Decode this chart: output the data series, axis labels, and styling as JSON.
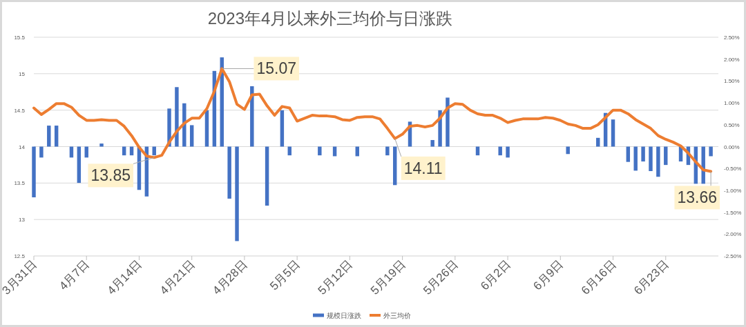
{
  "chart_data": {
    "type": "bar",
    "title": "2023年4月以来外三均价与日涨跌",
    "x": [
      "2023-03-31",
      "2023-04-01",
      "2023-04-02",
      "2023-04-03",
      "2023-04-04",
      "2023-04-05",
      "2023-04-06",
      "2023-04-07",
      "2023-04-08",
      "2023-04-09",
      "2023-04-10",
      "2023-04-11",
      "2023-04-12",
      "2023-04-13",
      "2023-04-14",
      "2023-04-15",
      "2023-04-16",
      "2023-04-17",
      "2023-04-18",
      "2023-04-19",
      "2023-04-20",
      "2023-04-21",
      "2023-04-22",
      "2023-04-23",
      "2023-04-24",
      "2023-04-25",
      "2023-04-26",
      "2023-04-27",
      "2023-04-28",
      "2023-04-29",
      "2023-04-30",
      "2023-05-01",
      "2023-05-02",
      "2023-05-03",
      "2023-05-04",
      "2023-05-05",
      "2023-05-06",
      "2023-05-07",
      "2023-05-08",
      "2023-05-09",
      "2023-05-10",
      "2023-05-11",
      "2023-05-12",
      "2023-05-13",
      "2023-05-14",
      "2023-05-15",
      "2023-05-16",
      "2023-05-17",
      "2023-05-18",
      "2023-05-19",
      "2023-05-20",
      "2023-05-21",
      "2023-05-22",
      "2023-05-23",
      "2023-05-24",
      "2023-05-25",
      "2023-05-26",
      "2023-05-27",
      "2023-05-28",
      "2023-05-29",
      "2023-05-30",
      "2023-05-31",
      "2023-06-01",
      "2023-06-02",
      "2023-06-03",
      "2023-06-04",
      "2023-06-05",
      "2023-06-06",
      "2023-06-07",
      "2023-06-08",
      "2023-06-09",
      "2023-06-10",
      "2023-06-11",
      "2023-06-12",
      "2023-06-13",
      "2023-06-14",
      "2023-06-15",
      "2023-06-16",
      "2023-06-17",
      "2023-06-18",
      "2023-06-19",
      "2023-06-20",
      "2023-06-21",
      "2023-06-22",
      "2023-06-23",
      "2023-06-24",
      "2023-06-25",
      "2023-06-26",
      "2023-06-27",
      "2023-06-28",
      "2023-06-29"
    ],
    "xlim": [
      "2023-03-31",
      "2023-06-30"
    ],
    "xticks": [
      {
        "value": "2023-03-31",
        "label": "3月31日"
      },
      {
        "value": "2023-04-07",
        "label": "4月7日"
      },
      {
        "value": "2023-04-14",
        "label": "4月14日"
      },
      {
        "value": "2023-04-21",
        "label": "4月21日"
      },
      {
        "value": "2023-04-28",
        "label": "4月28日"
      },
      {
        "value": "2023-05-05",
        "label": "5月5日"
      },
      {
        "value": "2023-05-12",
        "label": "5月12日"
      },
      {
        "value": "2023-05-19",
        "label": "5月19日"
      },
      {
        "value": "2023-05-26",
        "label": "5月26日"
      },
      {
        "value": "2023-06-02",
        "label": "6月2日"
      },
      {
        "value": "2023-06-09",
        "label": "6月9日"
      },
      {
        "value": "2023-06-16",
        "label": "6月16日"
      },
      {
        "value": "2023-06-23",
        "label": "6月23日"
      }
    ],
    "ylim": [
      12.5,
      15.5
    ],
    "yticks": [
      12.5,
      13,
      13.5,
      14,
      14.5,
      15,
      15.5
    ],
    "y2lim": [
      -2.5,
      2.5
    ],
    "y2ticks": [
      {
        "value": -2.5,
        "label": "-2.50%"
      },
      {
        "value": -2,
        "label": "-2.00%"
      },
      {
        "value": -1.5,
        "label": "-1.50%"
      },
      {
        "value": -1,
        "label": "-1.00%"
      },
      {
        "value": -0.5,
        "label": "-0.50%"
      },
      {
        "value": 0,
        "label": "0.00%"
      },
      {
        "value": 0.5,
        "label": "0.50%"
      },
      {
        "value": 1,
        "label": "1.00%"
      },
      {
        "value": 1.5,
        "label": "1.50%"
      },
      {
        "value": 2,
        "label": "2.00%"
      },
      {
        "value": 2.5,
        "label": "2.50%"
      }
    ],
    "series": [
      {
        "name": "规模日涨跌",
        "axis": "y2",
        "color": "#4472c4",
        "values": [
          -1.16,
          -0.25,
          0.48,
          0.48,
          null,
          -0.25,
          -0.83,
          -0.25,
          null,
          0.07,
          null,
          null,
          -0.2,
          -0.2,
          -0.99,
          -1.14,
          -0.2,
          null,
          0.87,
          1.36,
          0.99,
          0.49,
          null,
          0.83,
          1.73,
          2.04,
          -1.19,
          -2.16,
          null,
          1.38,
          null,
          -1.35,
          null,
          0.83,
          -0.2,
          null,
          null,
          null,
          -0.2,
          null,
          -0.22,
          null,
          null,
          -0.22,
          null,
          null,
          null,
          -0.2,
          -0.88,
          null,
          0.57,
          null,
          null,
          0.15,
          0.83,
          1.12,
          null,
          null,
          null,
          -0.2,
          null,
          null,
          -0.2,
          -0.25,
          null,
          null,
          null,
          null,
          null,
          null,
          null,
          -0.17,
          null,
          null,
          null,
          0.2,
          0.77,
          0.62,
          null,
          -0.35,
          -0.55,
          -0.34,
          -0.56,
          -0.69,
          -0.42,
          null,
          -0.34,
          -0.42,
          -0.85,
          -0.85,
          -0.22
        ]
      },
      {
        "name": "外三均价",
        "type": "line",
        "color": "#ed7d31",
        "values": [
          14.53,
          14.44,
          14.51,
          14.59,
          14.59,
          14.54,
          14.43,
          14.36,
          14.36,
          14.37,
          14.36,
          14.36,
          14.28,
          14.15,
          13.99,
          13.87,
          13.85,
          13.88,
          14.06,
          14.21,
          14.32,
          14.39,
          14.39,
          14.52,
          14.76,
          15.07,
          14.89,
          14.58,
          14.51,
          14.71,
          14.72,
          14.56,
          14.43,
          14.55,
          14.53,
          14.35,
          14.39,
          14.43,
          14.42,
          14.42,
          14.41,
          14.37,
          14.36,
          14.4,
          14.41,
          14.41,
          14.38,
          14.25,
          14.11,
          14.17,
          14.28,
          14.29,
          14.27,
          14.29,
          14.39,
          14.53,
          14.59,
          14.58,
          14.5,
          14.45,
          14.43,
          14.43,
          14.39,
          14.33,
          14.36,
          14.38,
          14.38,
          14.38,
          14.4,
          14.39,
          14.36,
          14.31,
          14.29,
          14.25,
          14.25,
          14.3,
          14.4,
          14.5,
          14.5,
          14.45,
          14.37,
          14.31,
          14.25,
          14.15,
          14.1,
          14.06,
          14.01,
          13.91,
          13.79,
          13.68,
          13.66
        ],
        "value_labels": [
          null,
          null,
          null,
          null,
          null,
          null,
          null,
          null,
          null,
          null,
          null,
          null,
          null,
          null,
          null,
          null,
          "13.85",
          null,
          null,
          null,
          null,
          null,
          null,
          null,
          null,
          "15.07",
          null,
          null,
          null,
          null,
          null,
          null,
          null,
          null,
          null,
          null,
          null,
          null,
          null,
          null,
          null,
          null,
          null,
          null,
          null,
          null,
          null,
          null,
          "14.11",
          null,
          null,
          null,
          null,
          null,
          null,
          null,
          null,
          null,
          null,
          null,
          null,
          null,
          null,
          null,
          null,
          null,
          null,
          null,
          null,
          null,
          null,
          null,
          null,
          null,
          null,
          null,
          null,
          null,
          null,
          null,
          null,
          null,
          null,
          null,
          null,
          null,
          null,
          null,
          null,
          null,
          "13.66"
        ]
      }
    ],
    "grid": "y",
    "legend": "bottom"
  }
}
